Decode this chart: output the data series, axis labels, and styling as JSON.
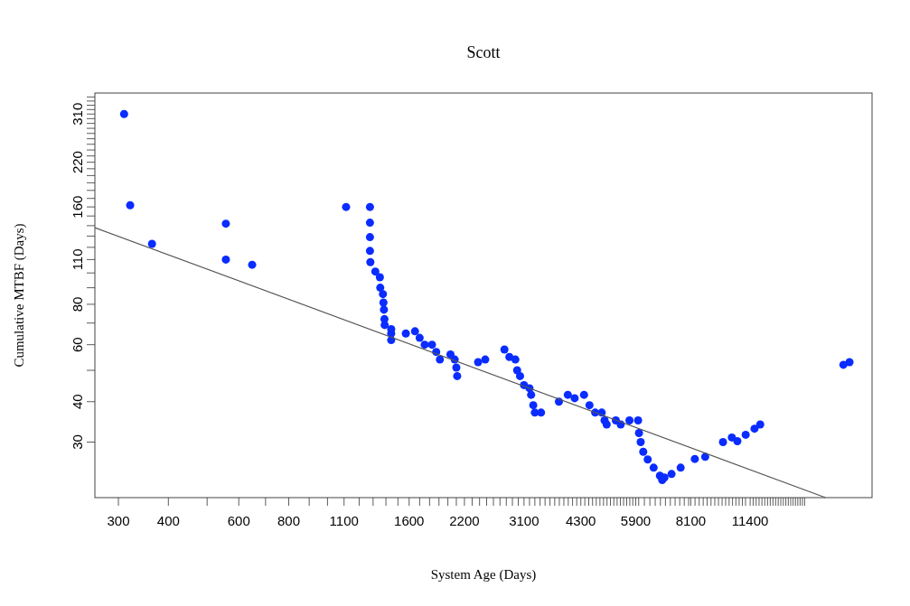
{
  "chart_data": {
    "type": "scatter",
    "title": "Scott",
    "xlabel": "System Age (Days)",
    "ylabel": "Cumulative MTBF (Days)",
    "log": "xy",
    "grid": false,
    "xlim": [
      262,
      23000
    ],
    "ylim": [
      20.2,
      360
    ],
    "xticks": [
      300,
      400,
      {
        "value": 500,
        "label": null
      },
      600,
      {
        "value": 700,
        "label": null
      },
      800,
      {
        "value": 900,
        "label": null
      },
      {
        "value": 1000,
        "label": null
      },
      1100,
      {
        "value": 1200,
        "label": null
      },
      {
        "value": 1300,
        "label": null
      },
      {
        "value": 1400,
        "label": null
      },
      {
        "value": 1500,
        "label": null
      },
      1600,
      {
        "value": 1700,
        "label": null
      },
      {
        "value": 1800,
        "label": null
      },
      {
        "value": 1900,
        "label": null
      },
      {
        "value": 2000,
        "label": null
      },
      {
        "value": 2100,
        "label": null
      },
      2200,
      {
        "value": 2300,
        "label": null
      },
      {
        "value": 2400,
        "label": null
      },
      {
        "value": 2500,
        "label": null
      },
      {
        "value": 2600,
        "label": null
      },
      {
        "value": 2700,
        "label": null
      },
      {
        "value": 2800,
        "label": null
      },
      {
        "value": 2900,
        "label": null
      },
      {
        "value": 3000,
        "label": null
      },
      3100,
      {
        "value": 3200,
        "label": null
      },
      {
        "value": 3300,
        "label": null
      },
      {
        "value": 3400,
        "label": null
      },
      {
        "value": 3500,
        "label": null
      },
      {
        "value": 3600,
        "label": null
      },
      {
        "value": 3700,
        "label": null
      },
      {
        "value": 3800,
        "label": null
      },
      {
        "value": 3900,
        "label": null
      },
      {
        "value": 4000,
        "label": null
      },
      {
        "value": 4100,
        "label": null
      },
      {
        "value": 4200,
        "label": null
      },
      4300,
      {
        "value": 4400,
        "label": null
      },
      {
        "value": 4500,
        "label": null
      },
      {
        "value": 4600,
        "label": null
      },
      {
        "value": 4700,
        "label": null
      },
      {
        "value": 4800,
        "label": null
      },
      {
        "value": 4900,
        "label": null
      },
      {
        "value": 5000,
        "label": null
      },
      {
        "value": 5100,
        "label": null
      },
      {
        "value": 5200,
        "label": null
      },
      {
        "value": 5300,
        "label": null
      },
      {
        "value": 5400,
        "label": null
      },
      {
        "value": 5500,
        "label": null
      },
      {
        "value": 5600,
        "label": null
      },
      {
        "value": 5700,
        "label": null
      },
      {
        "value": 5800,
        "label": null
      },
      5900,
      {
        "value": 6000,
        "label": null
      },
      {
        "value": 6200,
        "label": null
      },
      {
        "value": 6400,
        "label": null
      },
      {
        "value": 6600,
        "label": null
      },
      {
        "value": 6800,
        "label": null
      },
      {
        "value": 7000,
        "label": null
      },
      {
        "value": 7200,
        "label": null
      },
      {
        "value": 7400,
        "label": null
      },
      {
        "value": 7600,
        "label": null
      },
      {
        "value": 7800,
        "label": null
      },
      {
        "value": 8000,
        "label": null
      },
      8100,
      {
        "value": 8300,
        "label": null
      },
      {
        "value": 8500,
        "label": null
      },
      {
        "value": 8700,
        "label": null
      },
      {
        "value": 8900,
        "label": null
      },
      {
        "value": 9100,
        "label": null
      },
      {
        "value": 9300,
        "label": null
      },
      {
        "value": 9500,
        "label": null
      },
      {
        "value": 9700,
        "label": null
      },
      {
        "value": 9900,
        "label": null
      },
      {
        "value": 10100,
        "label": null
      },
      {
        "value": 10300,
        "label": null
      },
      {
        "value": 10500,
        "label": null
      },
      {
        "value": 10700,
        "label": null
      },
      {
        "value": 10900,
        "label": null
      },
      {
        "value": 11100,
        "label": null
      },
      11400,
      {
        "value": 11600,
        "label": null
      },
      {
        "value": 11800,
        "label": null
      },
      {
        "value": 12000,
        "label": null
      },
      {
        "value": 12200,
        "label": null
      },
      {
        "value": 12400,
        "label": null
      },
      {
        "value": 12600,
        "label": null
      },
      {
        "value": 12800,
        "label": null
      },
      {
        "value": 13000,
        "label": null
      },
      {
        "value": 13200,
        "label": null
      },
      {
        "value": 13400,
        "label": null
      },
      {
        "value": 13600,
        "label": null
      },
      {
        "value": 13800,
        "label": null
      },
      {
        "value": 14000,
        "label": null
      },
      {
        "value": 14200,
        "label": null
      },
      {
        "value": 14400,
        "label": null
      },
      {
        "value": 14600,
        "label": null
      },
      {
        "value": 14800,
        "label": null
      },
      {
        "value": 15000,
        "label": null
      },
      {
        "value": 15200,
        "label": null
      },
      {
        "value": 15400,
        "label": null
      },
      {
        "value": 15600,
        "label": null
      }
    ],
    "yticks": [
      30,
      40,
      {
        "value": 50,
        "label": null
      },
      60,
      {
        "value": 70,
        "label": null
      },
      80,
      {
        "value": 90,
        "label": null
      },
      {
        "value": 100,
        "label": null
      },
      110,
      {
        "value": 120,
        "label": null
      },
      {
        "value": 130,
        "label": null
      },
      {
        "value": 140,
        "label": null
      },
      {
        "value": 150,
        "label": null
      },
      160,
      {
        "value": 170,
        "label": null
      },
      {
        "value": 180,
        "label": null
      },
      {
        "value": 190,
        "label": null
      },
      {
        "value": 200,
        "label": null
      },
      {
        "value": 210,
        "label": null
      },
      220,
      {
        "value": 230,
        "label": null
      },
      {
        "value": 240,
        "label": null
      },
      {
        "value": 250,
        "label": null
      },
      {
        "value": 260,
        "label": null
      },
      {
        "value": 270,
        "label": null
      },
      {
        "value": 280,
        "label": null
      },
      {
        "value": 290,
        "label": null
      },
      {
        "value": 300,
        "label": null
      },
      310,
      {
        "value": 320,
        "label": null
      },
      {
        "value": 330,
        "label": null
      },
      {
        "value": 340,
        "label": null
      },
      {
        "value": 350,
        "label": null
      }
    ],
    "series": [
      {
        "marker": "circle",
        "color": "#0a2cff",
        "x": [
          310,
          321,
          364,
          557,
          557,
          648,
          1113,
          1277,
          1277,
          1277,
          1277,
          1280,
          1317,
          1352,
          1355,
          1376,
          1380,
          1384,
          1388,
          1390,
          1443,
          1443,
          1443,
          1570,
          1655,
          1700,
          1750,
          1825,
          1870,
          1910,
          2030,
          2080,
          2100,
          2110,
          2380,
          2480,
          2770,
          2850,
          2950,
          2980,
          3030,
          3100,
          3200,
          3230,
          3270,
          3300,
          3420,
          3790,
          3990,
          4150,
          4380,
          4520,
          4670,
          4850,
          4930,
          4990,
          5260,
          5410,
          5690,
          5980,
          6010,
          6070,
          6160,
          6320,
          6540,
          6780,
          6870,
          6960,
          7250,
          7640,
          8290,
          8800,
          9750,
          10260,
          10590,
          11110,
          11690,
          12080,
          19500,
          20200
        ],
        "values": [
          310,
          162,
          123,
          142,
          110,
          106,
          160,
          160,
          143,
          129,
          117,
          108,
          101,
          97,
          90,
          86,
          81,
          77,
          72,
          69,
          67,
          65,
          62,
          65,
          66,
          63,
          60,
          60,
          57,
          54,
          56,
          54,
          51,
          48,
          53,
          54,
          58,
          55,
          54,
          50,
          48,
          45,
          44,
          42,
          39,
          37,
          37,
          40,
          42,
          41,
          42,
          39,
          37,
          37,
          35,
          34,
          35,
          34,
          35,
          35,
          32,
          30,
          28,
          26.5,
          25,
          23.6,
          22.9,
          23.3,
          23.9,
          25,
          26.6,
          27,
          30,
          31,
          30.2,
          31.6,
          33,
          34,
          52,
          53
        ]
      },
      {
        "type": "line",
        "color": "#555555",
        "x": [
          262,
          17600
        ],
        "values": [
          138,
          20.2
        ]
      }
    ]
  }
}
